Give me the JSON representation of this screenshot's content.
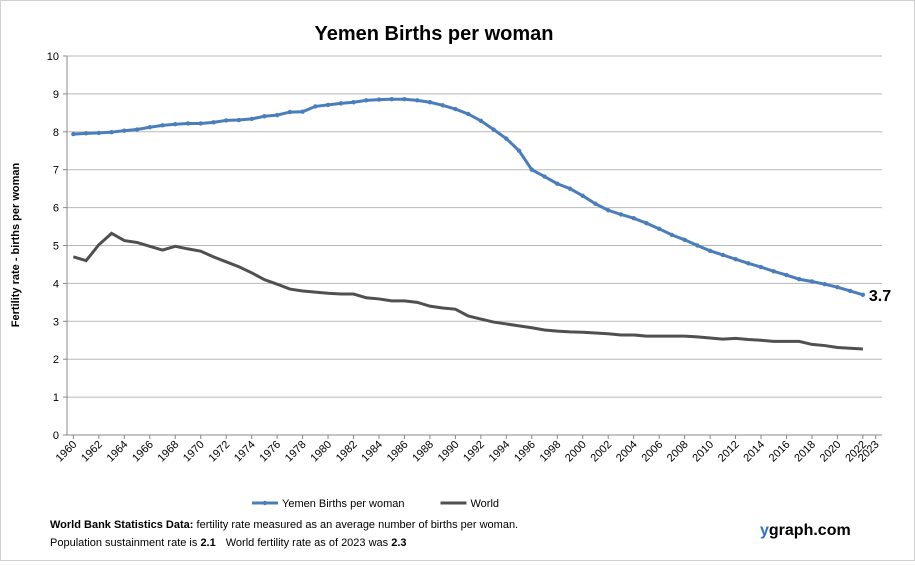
{
  "chart_data": {
    "type": "line",
    "title": "Yemen Births per woman",
    "y_label": "Fertility rate  - births per woman",
    "x": [
      1960,
      1961,
      1962,
      1963,
      1964,
      1965,
      1966,
      1967,
      1968,
      1969,
      1970,
      1971,
      1972,
      1973,
      1974,
      1975,
      1976,
      1977,
      1978,
      1979,
      1980,
      1981,
      1982,
      1983,
      1984,
      1985,
      1986,
      1987,
      1988,
      1989,
      1990,
      1991,
      1992,
      1993,
      1994,
      1995,
      1996,
      1997,
      1998,
      1999,
      2000,
      2001,
      2002,
      2003,
      2004,
      2005,
      2006,
      2007,
      2008,
      2009,
      2010,
      2011,
      2012,
      2013,
      2014,
      2015,
      2016,
      2017,
      2018,
      2019,
      2020,
      2021,
      2022
    ],
    "series": [
      {
        "name": "Yemen Births per woman",
        "color": "#4a7ebb",
        "markers": true,
        "values": [
          7.94,
          7.96,
          7.97,
          7.99,
          8.03,
          8.06,
          8.12,
          8.17,
          8.2,
          8.22,
          8.22,
          8.25,
          8.3,
          8.31,
          8.34,
          8.41,
          8.44,
          8.52,
          8.53,
          8.67,
          8.71,
          8.75,
          8.78,
          8.83,
          8.85,
          8.86,
          8.86,
          8.83,
          8.78,
          8.7,
          8.6,
          8.47,
          8.29,
          8.06,
          7.82,
          7.5,
          7.0,
          6.82,
          6.63,
          6.5,
          6.31,
          6.1,
          5.93,
          5.82,
          5.72,
          5.59,
          5.44,
          5.28,
          5.15,
          5.0,
          4.86,
          4.75,
          4.64,
          4.53,
          4.43,
          4.32,
          4.22,
          4.11,
          4.05,
          3.98,
          3.9,
          3.8,
          3.7
        ]
      },
      {
        "name": "World",
        "color": "#505050",
        "markers": false,
        "values": [
          4.7,
          4.6,
          5.02,
          5.32,
          5.13,
          5.08,
          4.98,
          4.88,
          4.98,
          4.91,
          4.85,
          4.7,
          4.57,
          4.44,
          4.28,
          4.1,
          3.98,
          3.85,
          3.8,
          3.77,
          3.74,
          3.72,
          3.72,
          3.62,
          3.59,
          3.54,
          3.54,
          3.5,
          3.4,
          3.35,
          3.32,
          3.14,
          3.06,
          2.98,
          2.93,
          2.88,
          2.83,
          2.77,
          2.74,
          2.72,
          2.71,
          2.69,
          2.67,
          2.64,
          2.64,
          2.61,
          2.61,
          2.61,
          2.61,
          2.59,
          2.56,
          2.53,
          2.55,
          2.52,
          2.5,
          2.47,
          2.47,
          2.47,
          2.39,
          2.36,
          2.31,
          2.29,
          2.27
        ]
      }
    ],
    "xlim": [
      1959.5,
      2023.5
    ],
    "xticks": [
      1960,
      1962,
      1964,
      1966,
      1968,
      1970,
      1972,
      1974,
      1976,
      1978,
      1980,
      1982,
      1984,
      1986,
      1988,
      1990,
      1992,
      1994,
      1996,
      1998,
      2000,
      2002,
      2004,
      2006,
      2008,
      2010,
      2012,
      2014,
      2016,
      2018,
      2020,
      2022,
      2023
    ],
    "ylim": [
      0,
      10
    ],
    "yticks": [
      0,
      1,
      2,
      3,
      4,
      5,
      6,
      7,
      8,
      9,
      10
    ],
    "grid": true,
    "legend": "bottom",
    "notes": {
      "source_label": "World Bank Statistics Data:",
      "source_text": "fertility rate measured as an average number  of births per woman.",
      "line2_a": "Population sustainment rate is",
      "sustainment": "2.1",
      "line2_b": "World fertility rate as of 2023 was",
      "world_rate": "2.3"
    },
    "brand_y": "y",
    "brand_rest": "graph.com"
  }
}
